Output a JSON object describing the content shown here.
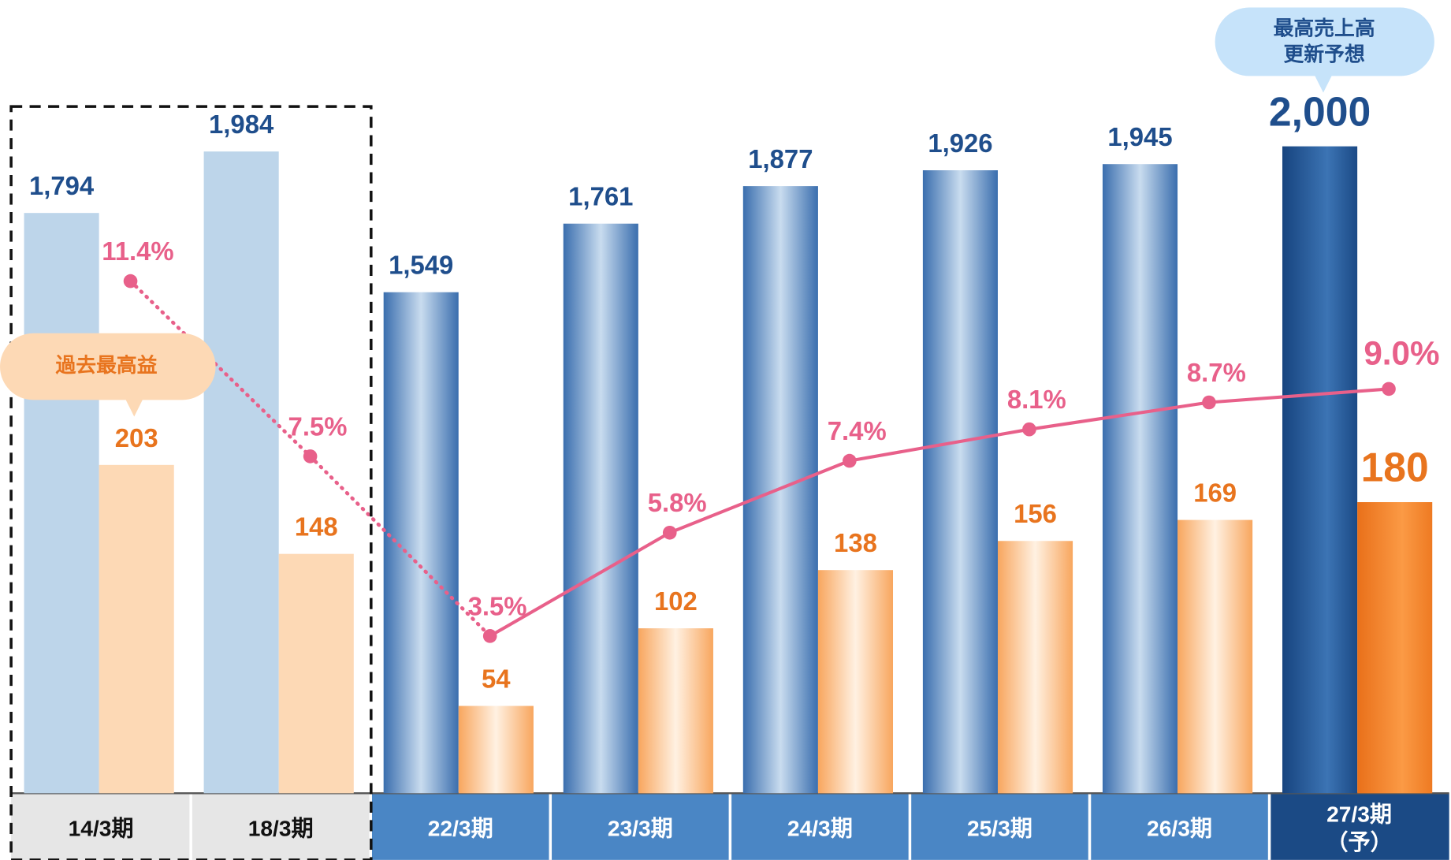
{
  "chart_data": {
    "type": "bar",
    "categories": [
      "14/3期",
      "18/3期",
      "22/3期",
      "23/3期",
      "24/3期",
      "25/3期",
      "26/3期",
      "27/3期（予）"
    ],
    "bar_styles": [
      "past",
      "past",
      "actual",
      "actual",
      "actual",
      "actual",
      "actual",
      "forecast"
    ],
    "line_segment_styles": [
      "dotted",
      "dotted",
      "solid",
      "solid",
      "solid",
      "solid",
      "solid"
    ],
    "ylim": [
      0,
      2000
    ],
    "y2lim": [
      0,
      400
    ],
    "y3lim": [
      0,
      14.4
    ],
    "series": [
      {
        "type": "bar",
        "color": "#1f4e8c",
        "values": [
          1794,
          1984,
          1549,
          1761,
          1877,
          1926,
          1945,
          2000
        ],
        "value_labels": [
          "1,794",
          "1,984",
          "1,549",
          "1,761",
          "1,877",
          "1,926",
          "1,945",
          "2,000"
        ]
      },
      {
        "type": "bar",
        "axis": "y2",
        "color": "#e8741e",
        "values": [
          203,
          148,
          54,
          102,
          138,
          156,
          169,
          180
        ],
        "value_labels": [
          "203",
          "148",
          "54",
          "102",
          "138",
          "156",
          "169",
          "180"
        ]
      },
      {
        "type": "line",
        "axis": "y3",
        "color": "#e8608a",
        "values": [
          11.4,
          7.5,
          3.5,
          5.8,
          7.4,
          8.1,
          8.7,
          9.0
        ],
        "value_labels": [
          "11.4%",
          "7.5%",
          "3.5%",
          "5.8%",
          "7.4%",
          "8.1%",
          "8.7%",
          "9.0%"
        ]
      }
    ],
    "annotations": {
      "record_sales": [
        "最高売上高",
        "更新予想"
      ],
      "record_profit": "過去最高益"
    }
  }
}
